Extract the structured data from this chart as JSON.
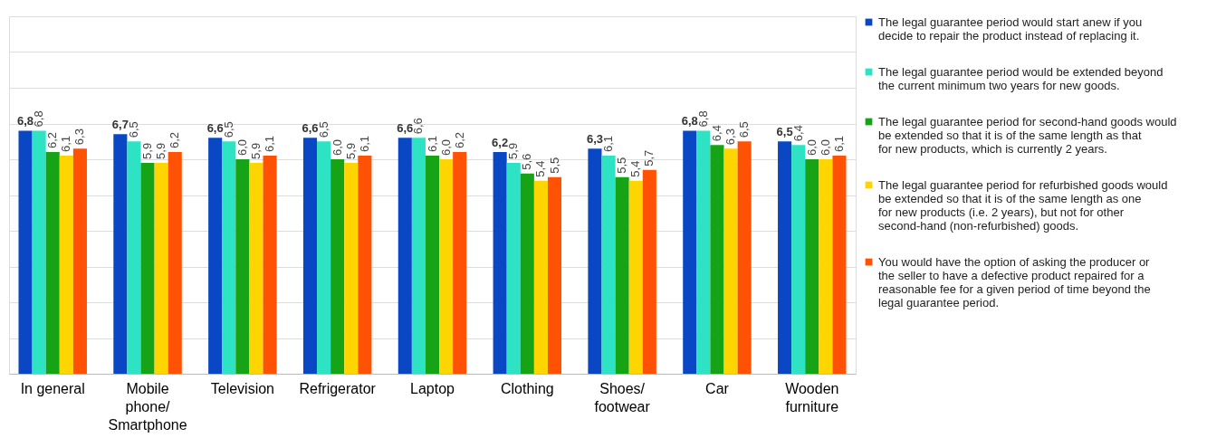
{
  "chart_data": {
    "type": "bar",
    "categories": [
      "In general",
      "Mobile phone/ Smartphone",
      "Television",
      "Refrigerator",
      "Laptop",
      "Clothing",
      "Shoes/ footwear",
      "Car",
      "Wooden furniture"
    ],
    "series": [
      {
        "name": "The legal guarantee period would start anew if you decide to repair the product instead of replacing it.",
        "color": "#0a47c4",
        "values": [
          6.8,
          6.7,
          6.6,
          6.6,
          6.6,
          6.2,
          6.3,
          6.8,
          6.5
        ],
        "value_labels": [
          "6,8",
          "6,7",
          "6,6",
          "6,6",
          "6,6",
          "6,2",
          "6,3",
          "6,8",
          "6,5"
        ]
      },
      {
        "name": "The legal guarantee period would be extended beyond the current minimum two years for new goods.",
        "color": "#2de3c3",
        "values": [
          6.8,
          6.5,
          6.5,
          6.5,
          6.6,
          5.9,
          6.1,
          6.8,
          6.4
        ],
        "value_labels": [
          "6,8",
          "6,5",
          "6,5",
          "6,5",
          "6,6",
          "5,9",
          "6,1",
          "6,8",
          "6,4"
        ]
      },
      {
        "name": "The legal guarantee period for second-hand goods would be extended so that it is of the same length as that for new products, which is currently 2 years.",
        "color": "#17a316",
        "values": [
          6.2,
          5.9,
          6.0,
          6.0,
          6.1,
          5.6,
          5.5,
          6.4,
          6.0
        ],
        "value_labels": [
          "6,2",
          "5,9",
          "6,0",
          "6,0",
          "6,1",
          "5,6",
          "5,5",
          "6,4",
          "6,0"
        ]
      },
      {
        "name": "The legal guarantee period for refurbished goods would be extended so that it is of the same length as one for new products (i.e. 2 years), but not for other second-hand (non-refurbished) goods.",
        "color": "#ffd500",
        "values": [
          6.1,
          5.9,
          5.9,
          5.9,
          6.0,
          5.4,
          5.4,
          6.3,
          6.0
        ],
        "value_labels": [
          "6,1",
          "5,9",
          "5,9",
          "5,9",
          "6,0",
          "5,4",
          "5,4",
          "6,3",
          "6,0"
        ]
      },
      {
        "name": "You would have the option of asking the producer or the seller to have a defective product repaired for a reasonable fee for a given period of time beyond the legal guarantee period.",
        "color": "#ff5204",
        "values": [
          6.3,
          6.2,
          6.1,
          6.1,
          6.2,
          5.5,
          5.7,
          6.5,
          6.1
        ],
        "value_labels": [
          "6,3",
          "6,2",
          "6,1",
          "6,1",
          "6,2",
          "5,5",
          "5,7",
          "6,5",
          "6,1"
        ]
      }
    ],
    "ylim": [
      0,
      10
    ],
    "yticks": [
      {
        "value": 0,
        "label": null
      },
      {
        "value": 1,
        "label": null
      },
      {
        "value": 2,
        "label": null
      },
      {
        "value": 3,
        "label": null
      },
      {
        "value": 4,
        "label": null
      },
      {
        "value": 5,
        "label": null
      },
      {
        "value": 6,
        "label": null
      },
      {
        "value": 7,
        "label": null
      },
      {
        "value": 8,
        "label": null
      },
      {
        "value": 9,
        "label": null
      },
      {
        "value": 10,
        "label": null
      }
    ],
    "tick_labels": "x",
    "grid": "y",
    "legend": "right"
  }
}
